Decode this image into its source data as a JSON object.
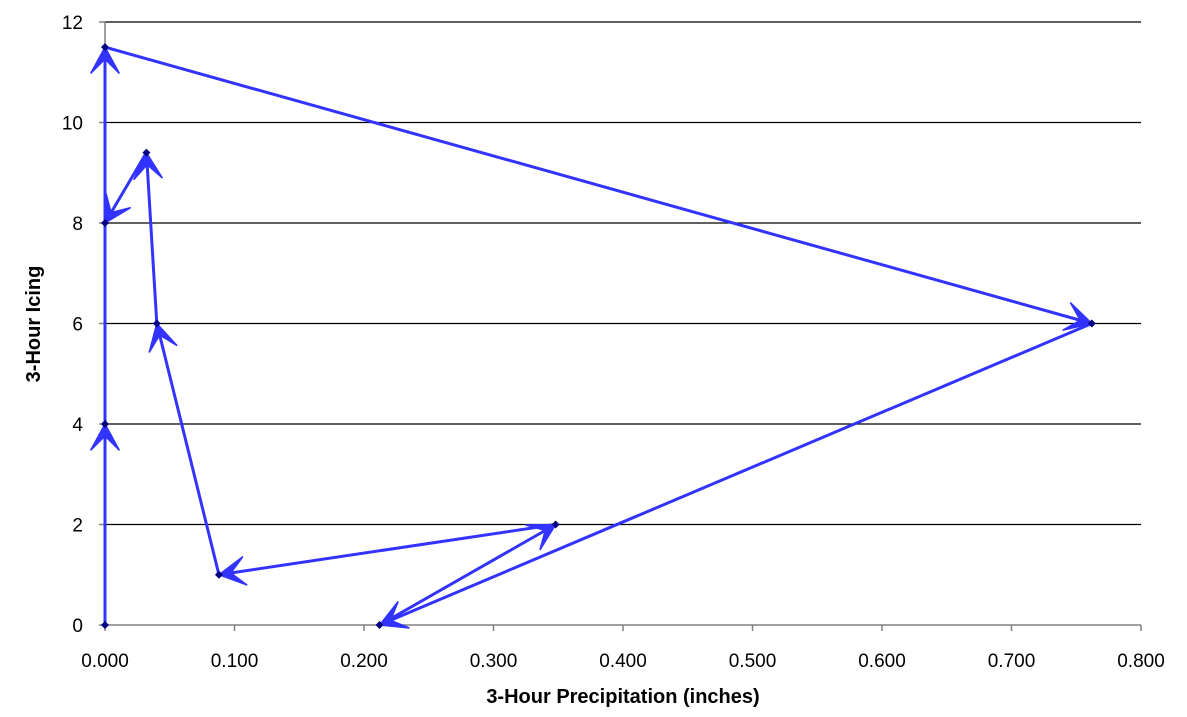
{
  "chart_data": {
    "type": "line",
    "title": "",
    "xlabel": "3-Hour Precipitation (inches)",
    "ylabel": "3-Hour Icing",
    "xlim": [
      0,
      0.8
    ],
    "ylim": [
      0,
      12
    ],
    "x_ticks": [
      "0.000",
      "0.100",
      "0.200",
      "0.300",
      "0.400",
      "0.500",
      "0.600",
      "0.700",
      "0.800"
    ],
    "y_ticks": [
      "0",
      "2",
      "4",
      "6",
      "8",
      "10",
      "12"
    ],
    "grid": "horizontal",
    "legend": "none",
    "series": [
      {
        "color": "#3333ff",
        "marker_color": "#000080",
        "connector": "arrow",
        "points": [
          {
            "x": 0.0,
            "y": 0
          },
          {
            "x": 0.0,
            "y": 4
          },
          {
            "x": 0.0,
            "y": 11.5
          },
          {
            "x": 0.762,
            "y": 6
          },
          {
            "x": 0.212,
            "y": 0
          },
          {
            "x": 0.348,
            "y": 2
          },
          {
            "x": 0.088,
            "y": 1
          },
          {
            "x": 0.04,
            "y": 6
          },
          {
            "x": 0.032,
            "y": 9.4
          },
          {
            "x": 0.0,
            "y": 8
          }
        ]
      }
    ]
  }
}
